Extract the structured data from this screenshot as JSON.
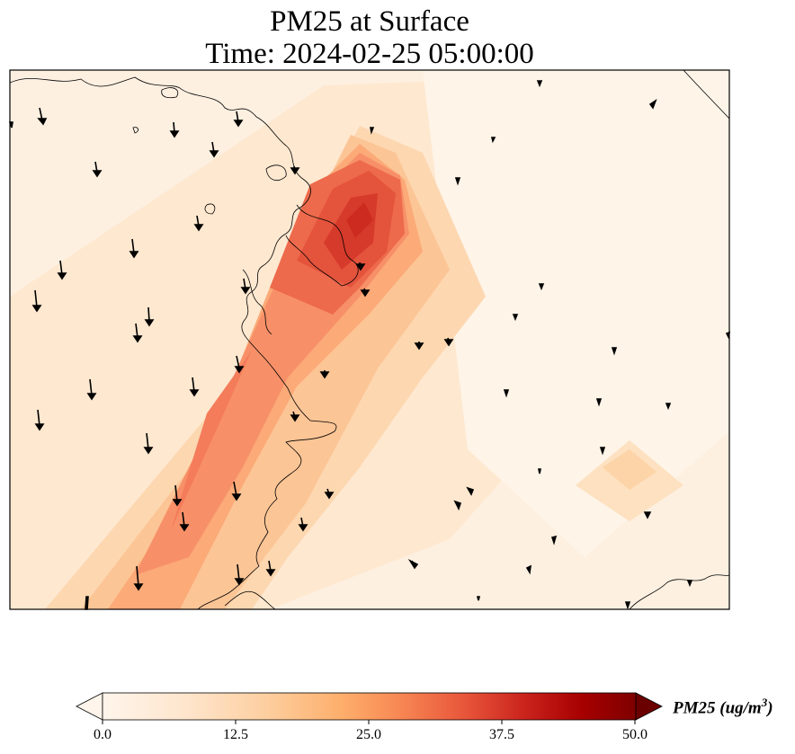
{
  "title": {
    "line1": "PM25 at Surface",
    "line2": "Time: 2024-02-25 05:00:00"
  },
  "map": {
    "field": "PM25",
    "units": "ug/m3",
    "colormap": [
      "#fff5eb",
      "#fee6ce",
      "#fdd0a2",
      "#fdae6b",
      "#fd8d3c",
      "#f16913",
      "#d94801",
      "#a60000",
      "#7f0000"
    ],
    "vmin": 0,
    "vmax": 50
  },
  "colorbar": {
    "label_text": "PM25 (ug/m",
    "label_exp": "3",
    "label_close": ")",
    "ticks": [
      "0.0",
      "12.5",
      "25.0",
      "37.5",
      "50.0"
    ],
    "colors": {
      "under": "#fff5eb",
      "over": "#6b0000"
    }
  }
}
